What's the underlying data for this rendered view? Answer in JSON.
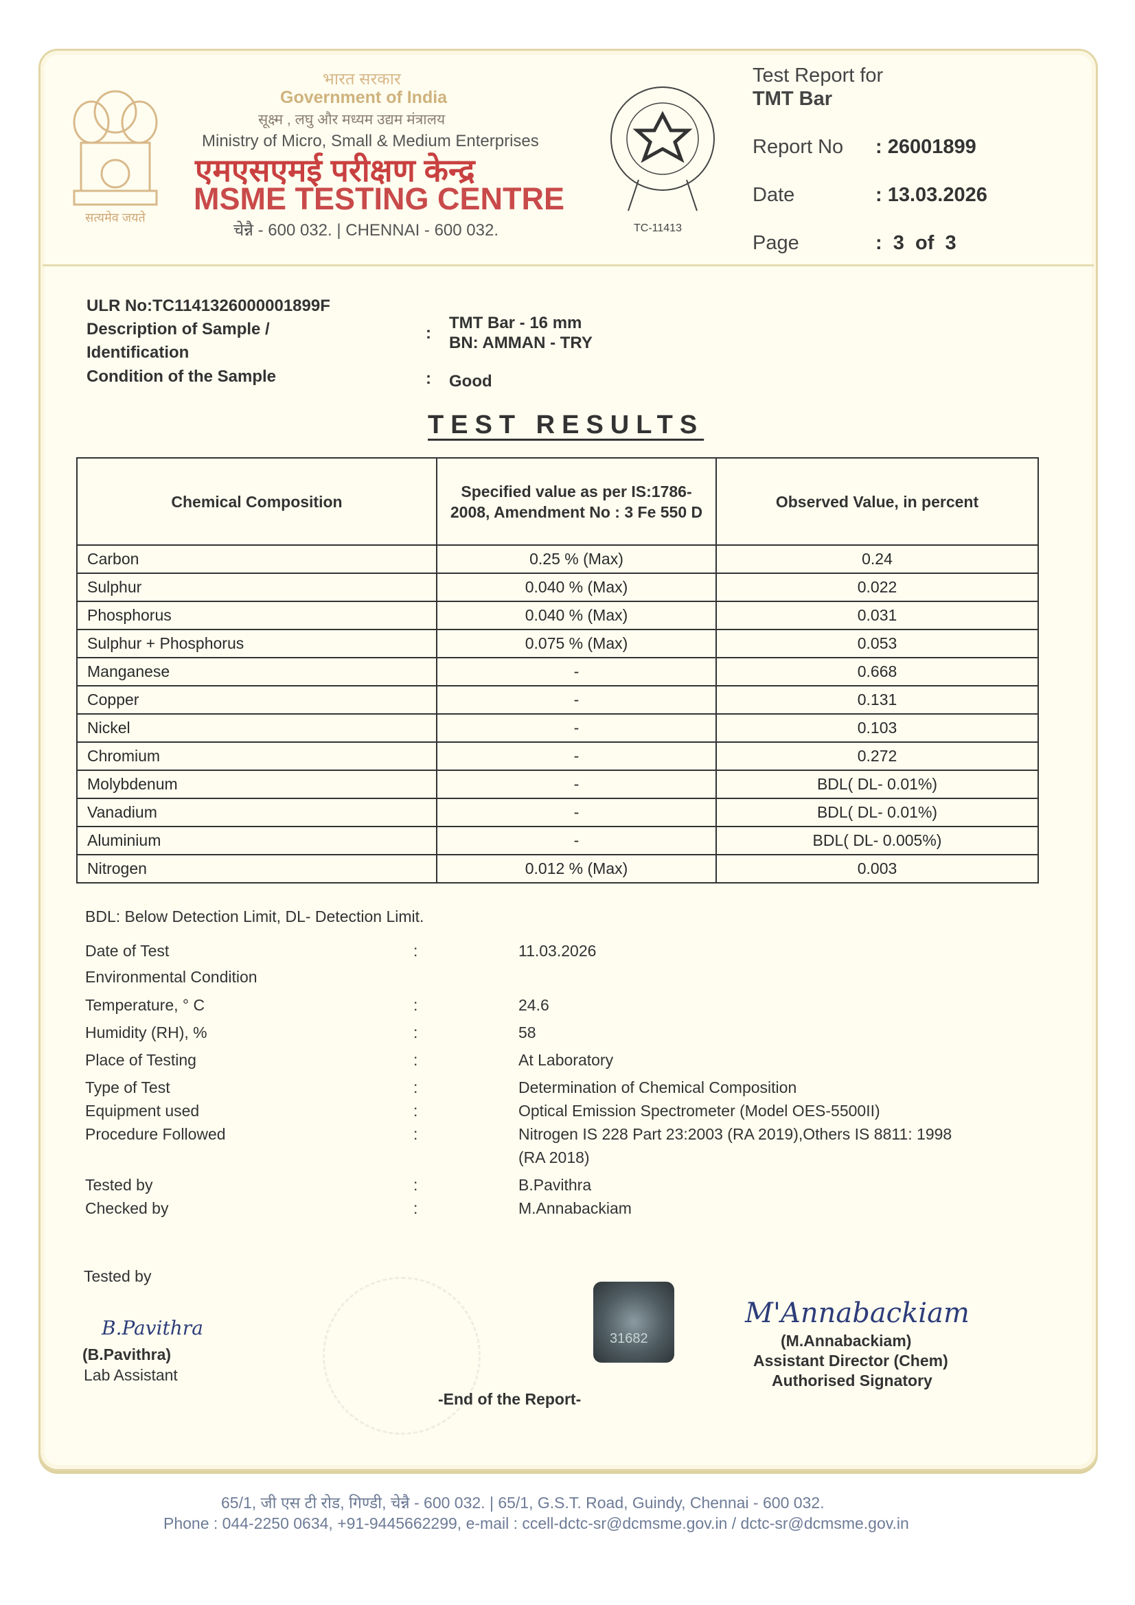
{
  "header": {
    "gov_hindi": "भारत सरकार",
    "gov": "Government of India",
    "ministry_hindi": "सूक्ष्म , लघु और मध्यम उद्यम मंत्रालय",
    "ministry": "Ministry of Micro, Small & Medium Enterprises",
    "centre_hindi": "एमएसएमई परीक्षण केन्द्र",
    "centre": "MSME TESTING CENTRE",
    "city": "चेन्नै - 600 032. | CHENNAI - 600 032.",
    "emblem_motto": "सत्यमेव जयते",
    "accreditation": "TC-11413",
    "report_for_label": "Test Report for",
    "report_for": "TMT Bar",
    "report_no_label": "Report No",
    "report_no": ": 26001899",
    "date_label": "Date",
    "date": ": 13.03.2026",
    "page_label": "Page",
    "page": ":  3  of  3"
  },
  "sample": {
    "ulr": "ULR No:TC1141326000001899F",
    "desc_label_1": "Description of Sample /",
    "desc_label_2": "Identification",
    "desc_value_1": "TMT Bar - 16 mm",
    "desc_value_2": "BN: AMMAN - TRY",
    "condition_label": "Condition of the Sample",
    "condition": "Good"
  },
  "results": {
    "title": "TEST RESULTS",
    "headers": [
      "Chemical Composition",
      "Specified value as per IS:1786-2008, Amendment No : 3 Fe 550 D",
      "Observed Value, in percent"
    ],
    "rows": [
      [
        "Carbon",
        "0.25 % (Max)",
        "0.24"
      ],
      [
        "Sulphur",
        "0.040 % (Max)",
        "0.022"
      ],
      [
        "Phosphorus",
        "0.040 % (Max)",
        "0.031"
      ],
      [
        "Sulphur + Phosphorus",
        "0.075 % (Max)",
        "0.053"
      ],
      [
        "Manganese",
        "-",
        "0.668"
      ],
      [
        "Copper",
        "-",
        "0.131"
      ],
      [
        "Nickel",
        "-",
        "0.103"
      ],
      [
        "Chromium",
        "-",
        "0.272"
      ],
      [
        "Molybdenum",
        "-",
        "BDL( DL- 0.01%)"
      ],
      [
        "Vanadium",
        "-",
        "BDL( DL- 0.01%)"
      ],
      [
        "Aluminium",
        "-",
        "BDL( DL- 0.005%)"
      ],
      [
        "Nitrogen",
        "0.012 % (Max)",
        "0.003"
      ]
    ],
    "note": "BDL: Below Detection Limit, DL- Detection Limit."
  },
  "details": [
    {
      "label": "Date of Test",
      "value": "11.03.2026"
    },
    {
      "label": "Environmental Condition",
      "value": ""
    },
    {
      "label": "Temperature, ° C",
      "value": "24.6"
    },
    {
      "label": "Humidity (RH), %",
      "value": "58"
    },
    {
      "label": "Place of Testing",
      "value": "At Laboratory"
    },
    {
      "label": "Type of Test",
      "value": "Determination of Chemical Composition"
    },
    {
      "label": "Equipment used",
      "value": "Optical Emission Spectrometer (Model OES-5500II)"
    },
    {
      "label": "Procedure Followed",
      "value": "Nitrogen IS 228 Part 23:2003 (RA 2019),Others IS 8811: 1998"
    },
    {
      "label": "",
      "value": "(RA 2018)"
    },
    {
      "label": "Tested by",
      "value": "B.Pavithra"
    },
    {
      "label": "Checked by",
      "value": "M.Annabackiam"
    }
  ],
  "signatures": {
    "tested_by_label": "Tested by",
    "left_sig": "B.Pavithra",
    "left_name": "(B.Pavithra)",
    "left_role": "Lab Assistant",
    "right_sig": "M'Annabackiam",
    "right_name": "(M.Annabackiam)",
    "right_role": "Assistant Director (Chem)",
    "right_auth": "Authorised Signatory",
    "hologram": "31682",
    "end": "-End of the Report-"
  },
  "footer": {
    "address": "65/1, जी एस टी रोड, गिण्डी, चेन्नै - 600 032. | 65/1, G.S.T. Road, Guindy, Chennai - 600 032.",
    "contact": "Phone : 044-2250 0634, +91-9445662299, e-mail : ccell-dctc-sr@dcmsme.gov.in / dctc-sr@dcmsme.gov.in"
  }
}
